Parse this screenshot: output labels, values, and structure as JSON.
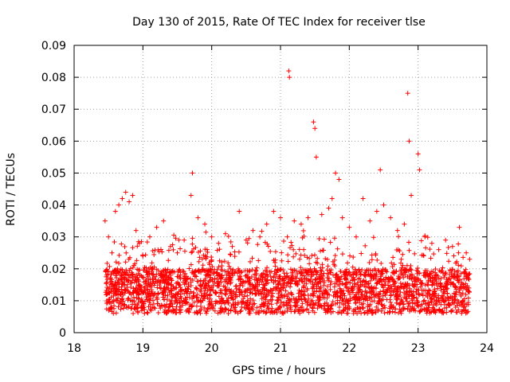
{
  "chart_data": {
    "type": "scatter",
    "title": "Day 130 of 2015, Rate Of TEC Index for receiver tlse",
    "xlabel": "GPS time / hours",
    "ylabel": "ROTI / TECUs",
    "xlim": [
      18,
      24
    ],
    "ylim": [
      0,
      0.09
    ],
    "xticks": [
      "18",
      "19",
      "20",
      "21",
      "22",
      "23",
      "24"
    ],
    "yticks": [
      "0",
      "0.01",
      "0.02",
      "0.03",
      "0.04",
      "0.05",
      "0.06",
      "0.07",
      "0.08",
      "0.09"
    ],
    "grid": true,
    "marker": "+",
    "color": "#ff0000",
    "series": [
      {
        "name": "ROTI",
        "x": [
          18.45,
          18.5,
          18.55,
          18.6,
          18.65,
          18.7,
          18.75,
          18.8,
          18.85,
          18.9,
          18.95,
          19.0,
          19.1,
          19.2,
          19.3,
          19.4,
          19.5,
          19.6,
          19.7,
          19.72,
          19.8,
          19.9,
          20.0,
          20.1,
          20.2,
          20.3,
          20.4,
          20.5,
          20.6,
          20.7,
          20.8,
          20.9,
          21.0,
          21.1,
          21.12,
          21.13,
          21.2,
          21.3,
          21.4,
          21.48,
          21.5,
          21.52,
          21.6,
          21.7,
          21.75,
          21.8,
          21.85,
          21.9,
          22.0,
          22.1,
          22.2,
          22.3,
          22.4,
          22.45,
          22.5,
          22.6,
          22.7,
          22.8,
          22.85,
          22.87,
          22.9,
          23.0,
          23.02,
          23.1,
          23.2,
          23.3,
          23.4,
          23.5,
          23.6,
          23.7,
          23.75
        ],
        "y": [
          0.035,
          0.03,
          0.025,
          0.038,
          0.04,
          0.042,
          0.044,
          0.041,
          0.043,
          0.032,
          0.028,
          0.024,
          0.03,
          0.033,
          0.035,
          0.027,
          0.025,
          0.029,
          0.043,
          0.05,
          0.036,
          0.034,
          0.03,
          0.028,
          0.031,
          0.027,
          0.038,
          0.029,
          0.032,
          0.03,
          0.034,
          0.038,
          0.036,
          0.03,
          0.082,
          0.08,
          0.035,
          0.034,
          0.036,
          0.066,
          0.064,
          0.055,
          0.037,
          0.039,
          0.042,
          0.05,
          0.048,
          0.036,
          0.033,
          0.03,
          0.042,
          0.035,
          0.038,
          0.051,
          0.04,
          0.036,
          0.032,
          0.034,
          0.075,
          0.06,
          0.043,
          0.056,
          0.051,
          0.03,
          0.028,
          0.026,
          0.029,
          0.027,
          0.033,
          0.025,
          0.023
        ]
      }
    ]
  }
}
